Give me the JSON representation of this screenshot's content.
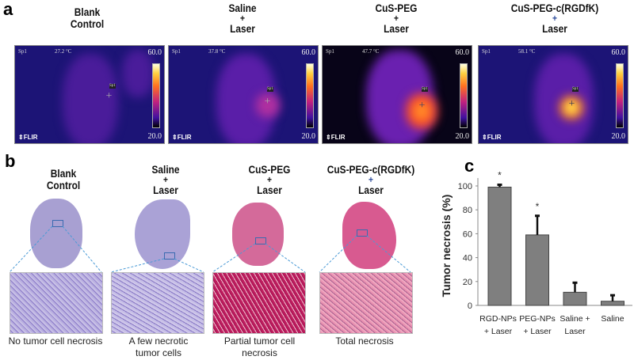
{
  "panels": {
    "a": "a",
    "b": "b",
    "c": "c"
  },
  "groups": [
    {
      "line1": "Blank",
      "plus": "",
      "line2": "Control",
      "spot": "Sp1",
      "temp": "27.2",
      "caption": "No tumor cell necrosis"
    },
    {
      "line1": "Saline",
      "plus": "+",
      "line2": "Laser",
      "spot": "Sp1",
      "temp": "37.8",
      "caption": "A few necrotic tumor cells"
    },
    {
      "line1": "CuS-PEG",
      "plus": "+",
      "line2": "Laser",
      "spot": "Sp1",
      "temp": "47.7",
      "caption": "Partial tumor cell necrosis"
    },
    {
      "line1": "CuS-PEG-c(RGDfK)",
      "plus": "+",
      "line2": "Laser",
      "spot": "Sp1",
      "temp": "58.1",
      "caption": "Total necrosis"
    }
  ],
  "thermal": {
    "unit": "°C",
    "scale_max": "60.0",
    "scale_min": "20.0",
    "brand": "⇕FLIR"
  },
  "chart_data": {
    "type": "bar",
    "categories": [
      "RGD-NPs + Laser",
      "PEG-NPs + Laser",
      "Saline + Laser",
      "Saline"
    ],
    "category_lines": [
      [
        "RGD-NPs",
        "+ Laser"
      ],
      [
        "PEG-NPs",
        "+ Laser"
      ],
      [
        "Saline +",
        "Laser"
      ],
      [
        "Saline",
        ""
      ]
    ],
    "values": [
      99,
      59,
      11,
      3.5
    ],
    "error_upper": [
      2,
      16,
      8,
      5
    ],
    "significance": [
      "*",
      "*",
      "",
      ""
    ],
    "ylabel": "Tumor necrosis (%)",
    "ylim": [
      0,
      100
    ],
    "yticks": [
      "0",
      "20",
      "40",
      "60",
      "80",
      "100"
    ],
    "bar_color": "#7f7f7f"
  }
}
